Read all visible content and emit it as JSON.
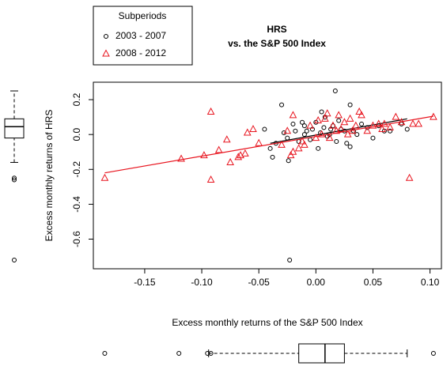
{
  "chart_data": {
    "type": "scatter",
    "title": "HRS",
    "subtitle": "vs. the S&P 500 Index",
    "x_label": "Excess monthly returns of the S&P 500 Index",
    "y_label": "Excess monthly returns of HRS",
    "legend_title": "Subperiods",
    "legend": "top-left",
    "xlim": [
      -0.195,
      0.11
    ],
    "ylim": [
      -0.77,
      0.3
    ],
    "xticks": [
      -0.15,
      {
        "value": -0.1,
        "label": "-0.10"
      },
      -0.05,
      {
        "value": 0,
        "label": "0.00"
      },
      0.05,
      {
        "value": 0.1,
        "label": "0.10"
      }
    ],
    "yticks": [
      0.2,
      {
        "value": 0,
        "label": "0.0"
      },
      -0.2,
      -0.4,
      -0.6
    ],
    "series": [
      {
        "name": "2003 - 2007",
        "color": "#000000",
        "marker": "circle",
        "x": [
          -0.045,
          -0.04,
          -0.038,
          -0.035,
          -0.03,
          -0.028,
          -0.025,
          -0.024,
          -0.023,
          -0.02,
          -0.018,
          -0.015,
          -0.012,
          -0.01,
          -0.008,
          -0.005,
          -0.003,
          0.0,
          0.002,
          0.004,
          0.005,
          0.007,
          0.008,
          0.01,
          0.012,
          0.015,
          0.017,
          0.018,
          0.02,
          0.022,
          0.025,
          0.027,
          0.03,
          0.03,
          0.033,
          0.036,
          0.04,
          0.045,
          0.05,
          0.055,
          0.06,
          0.065,
          0.075,
          0.08,
          -0.01,
          0.013
        ],
        "y": [
          0.03,
          -0.08,
          -0.13,
          -0.05,
          0.17,
          0.01,
          -0.02,
          -0.15,
          -0.72,
          0.06,
          0.02,
          -0.04,
          0.07,
          0.0,
          0.02,
          -0.03,
          0.03,
          0.07,
          -0.08,
          0.01,
          0.13,
          0.04,
          0.1,
          -0.01,
          0.0,
          0.05,
          0.25,
          -0.04,
          0.08,
          0.03,
          0.02,
          -0.05,
          -0.07,
          0.17,
          0.02,
          0.0,
          0.06,
          0.04,
          -0.02,
          0.05,
          0.02,
          0.02,
          0.06,
          0.03,
          0.05,
          0.03
        ],
        "fit": {
          "x": [
            -0.04,
            0.08
          ],
          "y": [
            -0.05,
            0.09
          ]
        }
      },
      {
        "name": "2008 - 2012",
        "color": "#e8141e",
        "marker": "triangle",
        "x": [
          -0.185,
          -0.118,
          -0.098,
          -0.092,
          -0.092,
          -0.085,
          -0.078,
          -0.075,
          -0.068,
          -0.066,
          -0.062,
          -0.06,
          -0.055,
          -0.05,
          -0.03,
          -0.02,
          -0.022,
          -0.02,
          -0.015,
          -0.01,
          -0.005,
          0.0,
          0.002,
          0.005,
          0.008,
          0.01,
          0.012,
          0.015,
          0.02,
          0.022,
          0.025,
          0.028,
          0.03,
          0.035,
          0.038,
          0.04,
          0.045,
          0.05,
          0.055,
          0.058,
          0.06,
          0.065,
          0.07,
          0.075,
          0.082,
          0.085,
          0.09,
          0.103,
          -0.025,
          0.018,
          -0.012,
          0.032
        ],
        "y": [
          -0.25,
          -0.14,
          -0.12,
          0.13,
          -0.26,
          -0.09,
          -0.03,
          -0.16,
          -0.13,
          -0.12,
          -0.11,
          0.01,
          0.03,
          -0.05,
          -0.06,
          0.11,
          -0.12,
          -0.1,
          -0.08,
          -0.06,
          0.05,
          -0.02,
          0.08,
          0.0,
          0.09,
          0.12,
          -0.02,
          0.05,
          0.11,
          0.03,
          0.07,
          0.0,
          0.09,
          0.05,
          0.13,
          0.11,
          0.02,
          0.05,
          0.06,
          0.03,
          0.06,
          0.04,
          0.1,
          0.07,
          -0.25,
          0.06,
          0.06,
          0.1,
          0.02,
          0.02,
          -0.04,
          0.02
        ],
        "fit": {
          "x": [
            -0.185,
            0.103
          ],
          "y": [
            -0.22,
            0.105
          ]
        }
      }
    ],
    "x_box": {
      "min": -0.094,
      "q1": -0.015,
      "median": 0.008,
      "q3": 0.025,
      "max": 0.08,
      "outliers": [
        -0.185,
        -0.12,
        -0.095,
        -0.092,
        0.103
      ]
    },
    "y_box": {
      "min": -0.16,
      "q1": -0.02,
      "median": 0.045,
      "q3": 0.09,
      "max": 0.25,
      "outliers": [
        -0.25,
        -0.26,
        -0.72
      ]
    }
  }
}
